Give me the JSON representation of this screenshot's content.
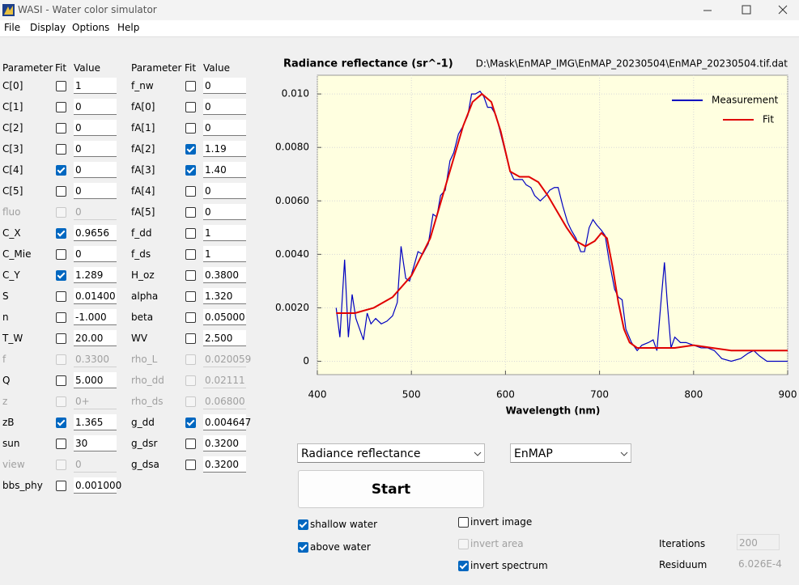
{
  "window": {
    "title": "WASI - Water color simulator"
  },
  "menu": [
    "File",
    "Display",
    "Options",
    "Help"
  ],
  "parameters": {
    "headers": [
      "Parameter",
      "Fit",
      "Value"
    ],
    "columns": [
      [
        {
          "name": "C[0]",
          "fit": false,
          "value": "1",
          "enabled": true
        },
        {
          "name": "C[1]",
          "fit": false,
          "value": "0",
          "enabled": true
        },
        {
          "name": "C[2]",
          "fit": false,
          "value": "0",
          "enabled": true
        },
        {
          "name": "C[3]",
          "fit": false,
          "value": "0",
          "enabled": true
        },
        {
          "name": "C[4]",
          "fit": true,
          "value": "0",
          "enabled": true
        },
        {
          "name": "C[5]",
          "fit": false,
          "value": "0",
          "enabled": true
        },
        {
          "name": "fluo",
          "fit": false,
          "value": "0",
          "enabled": false
        },
        {
          "name": "C_X",
          "fit": true,
          "value": "0.9656",
          "enabled": true
        },
        {
          "name": "C_Mie",
          "fit": false,
          "value": "0",
          "enabled": true
        },
        {
          "name": "C_Y",
          "fit": true,
          "value": "1.289",
          "enabled": true
        },
        {
          "name": "S",
          "fit": false,
          "value": "0.01400",
          "enabled": true
        },
        {
          "name": "n",
          "fit": false,
          "value": "-1.000",
          "enabled": true
        },
        {
          "name": "T_W",
          "fit": false,
          "value": "20.00",
          "enabled": true
        },
        {
          "name": "f",
          "fit": false,
          "value": "0.3300",
          "enabled": false
        },
        {
          "name": "Q",
          "fit": false,
          "value": "5.000",
          "enabled": true
        },
        {
          "name": "z",
          "fit": false,
          "value": "0+",
          "enabled": false
        },
        {
          "name": "zB",
          "fit": true,
          "value": "1.365",
          "enabled": true
        },
        {
          "name": "sun",
          "fit": false,
          "value": "30",
          "enabled": true
        },
        {
          "name": "view",
          "fit": false,
          "value": "0",
          "enabled": false
        },
        {
          "name": "bbs_phy",
          "fit": false,
          "value": "0.001000",
          "enabled": true
        }
      ],
      [
        {
          "name": "f_nw",
          "fit": false,
          "value": "0",
          "enabled": true
        },
        {
          "name": "fA[0]",
          "fit": false,
          "value": "0",
          "enabled": true
        },
        {
          "name": "fA[1]",
          "fit": false,
          "value": "0",
          "enabled": true
        },
        {
          "name": "fA[2]",
          "fit": true,
          "value": "1.19",
          "enabled": true
        },
        {
          "name": "fA[3]",
          "fit": true,
          "value": "1.40",
          "enabled": true
        },
        {
          "name": "fA[4]",
          "fit": false,
          "value": "0",
          "enabled": true
        },
        {
          "name": "fA[5]",
          "fit": false,
          "value": "0",
          "enabled": true
        },
        {
          "name": "f_dd",
          "fit": false,
          "value": "1",
          "enabled": true
        },
        {
          "name": "f_ds",
          "fit": false,
          "value": "1",
          "enabled": true
        },
        {
          "name": "H_oz",
          "fit": false,
          "value": "0.3800",
          "enabled": true
        },
        {
          "name": "alpha",
          "fit": false,
          "value": "1.320",
          "enabled": true
        },
        {
          "name": "beta",
          "fit": false,
          "value": "0.05000",
          "enabled": true
        },
        {
          "name": "WV",
          "fit": false,
          "value": "2.500",
          "enabled": true
        },
        {
          "name": "rho_L",
          "fit": false,
          "value": "0.020059",
          "enabled": false
        },
        {
          "name": "rho_dd",
          "fit": false,
          "value": "0.02111",
          "enabled": false
        },
        {
          "name": "rho_ds",
          "fit": false,
          "value": "0.06800",
          "enabled": false
        },
        {
          "name": "g_dd",
          "fit": true,
          "value": "0.004647",
          "enabled": true
        },
        {
          "name": "g_dsr",
          "fit": false,
          "value": "0.3200",
          "enabled": true
        },
        {
          "name": "g_dsa",
          "fit": false,
          "value": "0.3200",
          "enabled": true
        }
      ]
    ]
  },
  "chart_data": {
    "type": "line",
    "title": "Radiance reflectance (sr^-1)",
    "subtitle": "D:\\Mask\\EnMAP_IMG\\EnMAP_20230504\\EnMAP_20230504.tif.dat",
    "x_label": "Wavelength (nm)",
    "xlim": [
      400,
      900
    ],
    "xticks": [
      400,
      500,
      600,
      700,
      800,
      900
    ],
    "ylim": [
      -0.0005,
      0.0107
    ],
    "yticks": [
      0,
      {
        "value": 0.002,
        "label": "0.0020"
      },
      {
        "value": 0.004,
        "label": "0.0040"
      },
      {
        "value": 0.006,
        "label": "0.0060"
      },
      {
        "value": 0.008,
        "label": "0.0080"
      },
      {
        "value": 0.01,
        "label": "0.010"
      }
    ],
    "grid": true,
    "legend": "upper right",
    "series": [
      {
        "name": "Measurement",
        "color": "#0000c0",
        "x": [
          420,
          424,
          429,
          433,
          437,
          441,
          445,
          449,
          453,
          457,
          462,
          468,
          474,
          480,
          485,
          489,
          494,
          498,
          503,
          507,
          512,
          518,
          523,
          527,
          531,
          536,
          541,
          545,
          550,
          555,
          560,
          564,
          568,
          573,
          577,
          581,
          585,
          590,
          595,
          600,
          605,
          609,
          614,
          618,
          622,
          627,
          631,
          637,
          643,
          647,
          652,
          656,
          661,
          666,
          670,
          675,
          680,
          684,
          689,
          693,
          697,
          702,
          706,
          710,
          716,
          720,
          724,
          728,
          734,
          740,
          745,
          752,
          757,
          761,
          766,
          769,
          772,
          776,
          780,
          786,
          792,
          800,
          808,
          815,
          822,
          830,
          840,
          850,
          858,
          864,
          870,
          878,
          890,
          900
        ],
        "values": [
          0.002,
          0.0009,
          0.0038,
          0.0009,
          0.0025,
          0.0016,
          0.0012,
          0.0008,
          0.0018,
          0.0014,
          0.0016,
          0.0014,
          0.0015,
          0.0017,
          0.0022,
          0.0043,
          0.0031,
          0.003,
          0.0036,
          0.0041,
          0.004,
          0.0044,
          0.0055,
          0.0054,
          0.0062,
          0.0064,
          0.0075,
          0.0078,
          0.0085,
          0.0088,
          0.0092,
          0.01,
          0.01,
          0.0101,
          0.0099,
          0.0095,
          0.0095,
          0.0092,
          0.0085,
          0.0078,
          0.0071,
          0.0068,
          0.0068,
          0.0068,
          0.0066,
          0.0065,
          0.0062,
          0.006,
          0.0062,
          0.0064,
          0.0065,
          0.0065,
          0.0058,
          0.0052,
          0.0049,
          0.0046,
          0.0041,
          0.0041,
          0.005,
          0.0053,
          0.0051,
          0.0049,
          0.0047,
          0.0038,
          0.0027,
          0.0024,
          0.0023,
          0.0012,
          0.0007,
          0.0004,
          0.0006,
          0.0007,
          0.0008,
          0.0004,
          0.0025,
          0.0037,
          0.0022,
          0.0005,
          0.0009,
          0.0007,
          0.0007,
          0.0006,
          0.0005,
          0.0005,
          0.0004,
          0.0001,
          0,
          0.0001,
          0.0003,
          0.0004,
          0.0002,
          0,
          0,
          0
        ]
      },
      {
        "name": "Fit",
        "color": "#e00000",
        "x": [
          420,
          440,
          460,
          480,
          500,
          520,
          540,
          555,
          565,
          575,
          585,
          595,
          605,
          615,
          625,
          635,
          645,
          655,
          665,
          675,
          685,
          695,
          702,
          708,
          714,
          720,
          726,
          732,
          740,
          760,
          780,
          800,
          820,
          840,
          860,
          880,
          900
        ],
        "values": [
          0.0018,
          0.0018,
          0.002,
          0.0024,
          0.0032,
          0.0046,
          0.007,
          0.0088,
          0.0097,
          0.01,
          0.0097,
          0.0086,
          0.0071,
          0.0069,
          0.0069,
          0.0067,
          0.0062,
          0.0056,
          0.005,
          0.0045,
          0.0043,
          0.0045,
          0.0048,
          0.0046,
          0.0035,
          0.0022,
          0.0012,
          0.0007,
          0.0005,
          0.0005,
          0.0005,
          0.0006,
          0.0005,
          0.0004,
          0.0004,
          0.0004,
          0.0004
        ]
      }
    ]
  },
  "controls": {
    "mode": "Radiance reflectance",
    "sensor": "EnMAP",
    "start": "Start",
    "options": [
      {
        "label": "shallow water",
        "checked": true,
        "enabled": true
      },
      {
        "label": "above water",
        "checked": true,
        "enabled": true
      },
      {
        "label": "invert image",
        "checked": false,
        "enabled": true
      },
      {
        "label": "invert area",
        "checked": false,
        "enabled": false
      },
      {
        "label": "invert spectrum",
        "checked": true,
        "enabled": true
      }
    ],
    "iterations": {
      "label": "Iterations",
      "value": "200"
    },
    "residuum": {
      "label": "Residuum",
      "value": "6.026E-4"
    }
  }
}
